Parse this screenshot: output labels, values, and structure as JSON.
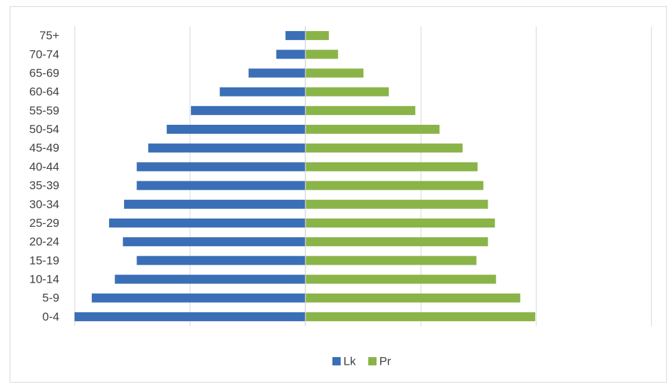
{
  "chart_data": {
    "type": "bar",
    "orientation": "horizontal",
    "layout": "population-pyramid",
    "categories": [
      "0-4",
      "5-9",
      "10-14",
      "15-19",
      "20-24",
      "25-29",
      "30-34",
      "35-39",
      "40-44",
      "45-49",
      "50-54",
      "55-59",
      "60-64",
      "65-69",
      "70-74",
      "75+"
    ],
    "series": [
      {
        "name": "Lk",
        "color": "#3a6fb7",
        "values": [
          1.0,
          0.925,
          0.825,
          0.73,
          0.79,
          0.85,
          0.785,
          0.73,
          0.73,
          0.68,
          0.6,
          0.495,
          0.37,
          0.245,
          0.125,
          0.085
        ]
      },
      {
        "name": "Pr",
        "color": "#8ab447",
        "values": [
          0.995,
          0.93,
          0.825,
          0.74,
          0.79,
          0.82,
          0.79,
          0.77,
          0.745,
          0.68,
          0.58,
          0.475,
          0.36,
          0.25,
          0.14,
          0.1
        ]
      }
    ],
    "xlim": [
      -1.0,
      1.5
    ],
    "grid": true,
    "legend_position": "bottom"
  }
}
